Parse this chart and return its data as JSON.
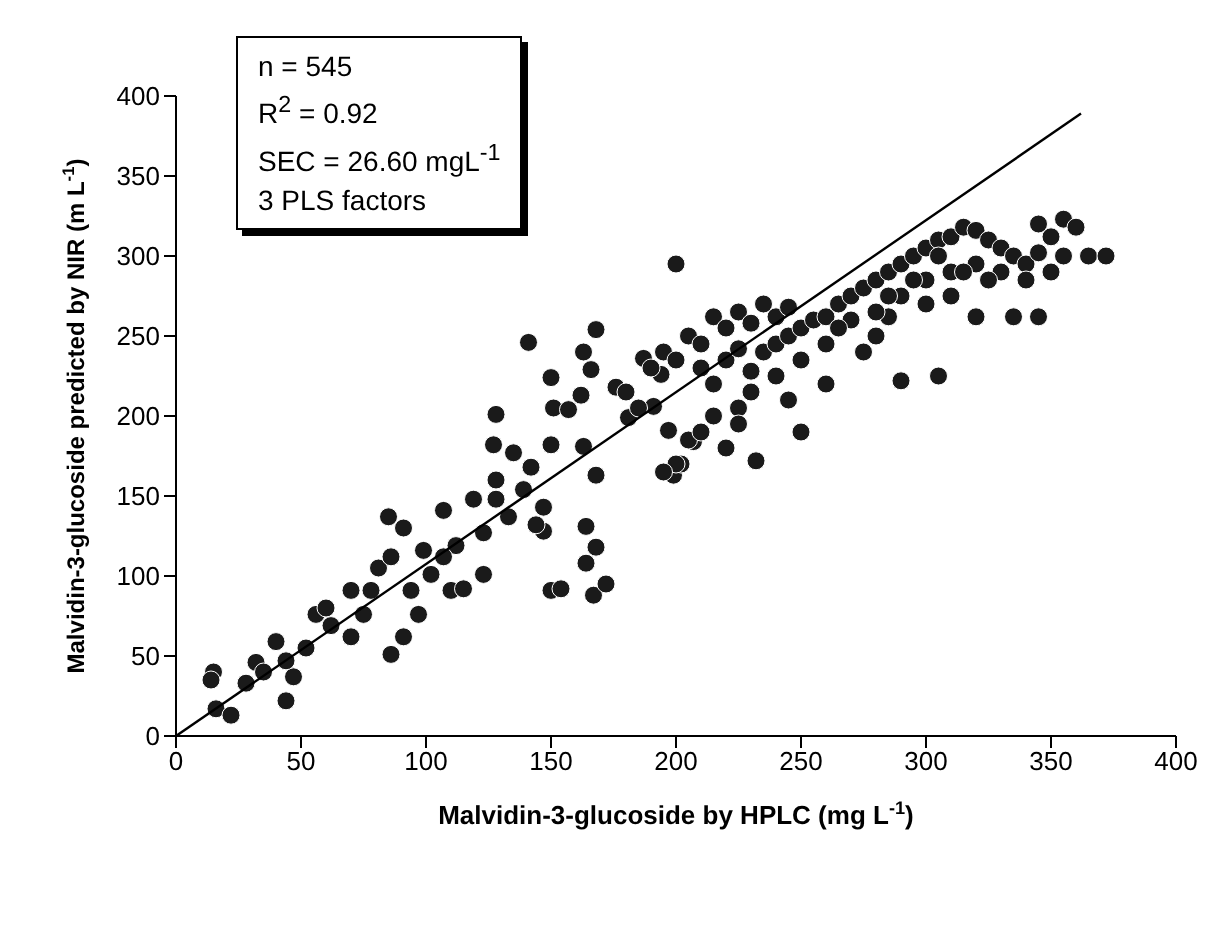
{
  "chart_data": {
    "type": "scatter",
    "xlabel": "Malvidin-3-glucoside by HPLC (mg L$^{-1}$)",
    "ylabel": "Malvidin-3-glucoside predicted by NIR (m L$^{-1}$)",
    "annotations": [
      "n = 545",
      "R$^{2}$ = 0.92",
      "SEC = 26.60 mgL$^{-1}$",
      "3 PLS factors"
    ],
    "xlim": [
      0,
      400
    ],
    "xticks": [
      0,
      50,
      100,
      150,
      200,
      250,
      300,
      350,
      400
    ],
    "ylim": [
      0,
      400
    ],
    "yticks": [
      0,
      50,
      100,
      150,
      200,
      250,
      300,
      350,
      400
    ],
    "grid": false,
    "legend": false,
    "marker": "circle",
    "series": [
      {
        "color": "#1a1a1a",
        "x": [
          15,
          14,
          16,
          22,
          32,
          40,
          44,
          47,
          56,
          60,
          70,
          86,
          91,
          85,
          91,
          107,
          119,
          110,
          115,
          123,
          128,
          139,
          147,
          99,
          81,
          75,
          62,
          52,
          35,
          28,
          44,
          78,
          94,
          102,
          112,
          123,
          133,
          97,
          70,
          86,
          107,
          141,
          168,
          150,
          128,
          127,
          135,
          142,
          128,
          150,
          163,
          166,
          151,
          157,
          162,
          163,
          168,
          176,
          181,
          187,
          197,
          199,
          202,
          207,
          191,
          194,
          164,
          168,
          164,
          167,
          172,
          150,
          154,
          147,
          144,
          200,
          205,
          210,
          215,
          220,
          225,
          230,
          235,
          240,
          245,
          210,
          215,
          220,
          225,
          230,
          235,
          240,
          245,
          250,
          255,
          260,
          265,
          270,
          275,
          280,
          285,
          290,
          295,
          300,
          305,
          310,
          315,
          320,
          325,
          330,
          335,
          340,
          345,
          350,
          355,
          360,
          365,
          372,
          290,
          300,
          310,
          320,
          330,
          340,
          335,
          345,
          320,
          305,
          290,
          270,
          260,
          250,
          240,
          230,
          225,
          215,
          220,
          205,
          200,
          195,
          210,
          185,
          180,
          190,
          195,
          200,
          275,
          280,
          285,
          260,
          245,
          250,
          232,
          225,
          265,
          300,
          310,
          315,
          325,
          350,
          355,
          345,
          305,
          295,
          285,
          280
        ],
        "values": [
          40,
          35,
          17,
          13,
          46,
          59,
          22,
          37,
          76,
          80,
          91,
          51,
          62,
          137,
          130,
          141,
          148,
          91,
          92,
          101,
          148,
          154,
          128,
          116,
          105,
          76,
          69,
          55,
          40,
          33,
          47,
          91,
          91,
          101,
          119,
          127,
          137,
          76,
          62,
          112,
          112,
          246,
          254,
          224,
          201,
          182,
          177,
          168,
          160,
          182,
          240,
          229,
          205,
          204,
          213,
          181,
          163,
          218,
          199,
          236,
          191,
          163,
          170,
          184,
          206,
          226,
          131,
          118,
          108,
          88,
          95,
          91,
          92,
          143,
          132,
          295,
          250,
          245,
          262,
          255,
          265,
          258,
          270,
          262,
          268,
          230,
          220,
          235,
          242,
          228,
          240,
          245,
          250,
          255,
          260,
          262,
          270,
          275,
          280,
          285,
          290,
          295,
          300,
          305,
          310,
          312,
          318,
          316,
          310,
          305,
          300,
          295,
          302,
          312,
          323,
          318,
          300,
          300,
          275,
          285,
          290,
          295,
          290,
          285,
          262,
          262,
          262,
          225,
          222,
          260,
          245,
          235,
          225,
          215,
          205,
          200,
          180,
          185,
          170,
          165,
          190,
          205,
          215,
          230,
          240,
          235,
          240,
          250,
          262,
          220,
          210,
          190,
          172,
          195,
          255,
          270,
          275,
          290,
          285,
          290,
          300,
          320,
          300,
          285,
          275,
          265
        ]
      },
      {
        "type": "line",
        "color": "#000000",
        "marker": "none",
        "x": [
          0,
          362
        ],
        "values": [
          0,
          389
        ]
      }
    ]
  }
}
